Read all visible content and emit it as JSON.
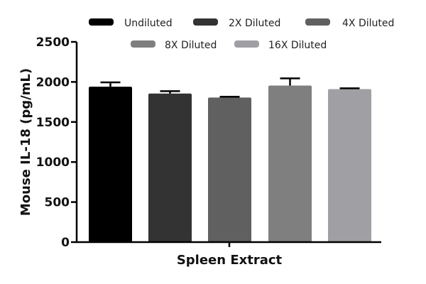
{
  "chart_data": {
    "type": "bar",
    "title": "",
    "xlabel": "Spleen Extract",
    "ylabel": "Mouse IL-18 (pg/mL)",
    "ylim": [
      0,
      2500
    ],
    "yticks": [
      0,
      500,
      1000,
      1500,
      2000,
      2500
    ],
    "grid": false,
    "legend_position": "top",
    "categories": [
      "Spleen Extract"
    ],
    "series": [
      {
        "name": "Undiluted",
        "color": "#000000",
        "values": [
          1940
        ],
        "error": [
          55
        ]
      },
      {
        "name": "2X Diluted",
        "color": "#333333",
        "values": [
          1855
        ],
        "error": [
          30
        ]
      },
      {
        "name": "4X Diluted",
        "color": "#606060",
        "values": [
          1805
        ],
        "error": [
          10
        ]
      },
      {
        "name": "8X Diluted",
        "color": "#7f7f7f",
        "values": [
          1955
        ],
        "error": [
          90
        ]
      },
      {
        "name": "16X Diluted",
        "color": "#a0a0a4",
        "values": [
          1910
        ],
        "error": [
          10
        ]
      }
    ]
  }
}
